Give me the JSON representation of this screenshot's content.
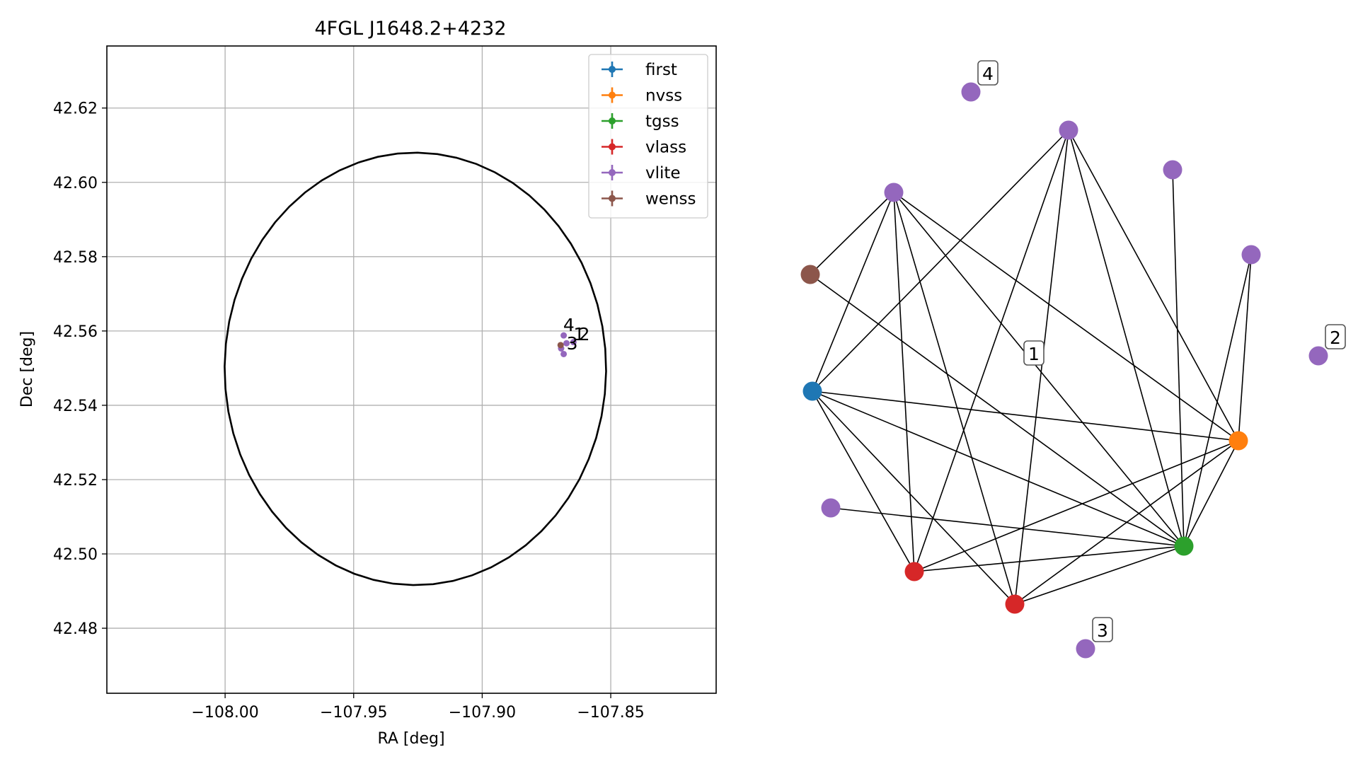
{
  "chart_data": [
    {
      "type": "scatter",
      "title": "4FGL J1648.2+4232",
      "xlabel": "RA [deg]",
      "ylabel": "Dec [deg]",
      "xlim": [
        -108.046,
        -107.809
      ],
      "ylim": [
        42.4625,
        42.6367
      ],
      "xticks": [
        -108.0,
        -107.95,
        -107.9,
        -107.85
      ],
      "xtick_labels": [
        "−108.00",
        "−107.95",
        "−107.90",
        "−107.85"
      ],
      "yticks": [
        42.48,
        42.5,
        42.52,
        42.54,
        42.56,
        42.58,
        42.6,
        42.62
      ],
      "ytick_labels": [
        "42.48",
        "42.50",
        "42.52",
        "42.54",
        "42.56",
        "42.58",
        "42.60",
        "42.62"
      ],
      "grid": true,
      "legend_position": "top-right",
      "ellipse": {
        "center_ra": -107.926,
        "center_dec": 42.5498,
        "semi_ra": 0.0742,
        "semi_dec": 0.0582,
        "color": "#000000"
      },
      "series": [
        {
          "name": "first",
          "color": "#1f77b4",
          "points": []
        },
        {
          "name": "nvss",
          "color": "#ff7f0e",
          "points": []
        },
        {
          "name": "tgss",
          "color": "#2ca02c",
          "points": []
        },
        {
          "name": "vlass",
          "color": "#d62728",
          "points": []
        },
        {
          "name": "vlite",
          "color": "#9467bd",
          "points": [
            {
              "ra": -107.8683,
              "dec": 42.5588
            },
            {
              "ra": -107.8672,
              "dec": 42.5567
            },
            {
              "ra": -107.8645,
              "dec": 42.557
            },
            {
              "ra": -107.8683,
              "dec": 42.5538
            },
            {
              "ra": -107.8693,
              "dec": 42.5553
            }
          ]
        },
        {
          "name": "wenss",
          "color": "#8c564b",
          "points": [
            {
              "ra": -107.8695,
              "dec": 42.5562
            }
          ]
        }
      ],
      "annotations": [
        {
          "text": "4",
          "ra": -107.8685,
          "dec": 42.56
        },
        {
          "text": "1",
          "ra": -107.8645,
          "dec": 42.5575
        },
        {
          "text": "2",
          "ra": -107.8625,
          "dec": 42.5575
        },
        {
          "text": "3",
          "ra": -107.8672,
          "dec": 42.555
        }
      ]
    },
    {
      "type": "network",
      "node_colors": {
        "first": "#1f77b4",
        "nvss": "#ff7f0e",
        "tgss": "#2ca02c",
        "vlass": "#d62728",
        "vlite": "#9467bd",
        "wenss": "#8c564b"
      },
      "nodes": [
        {
          "id": "vlite_4",
          "catalog": "vlite",
          "label": "4"
        },
        {
          "id": "vlite_a",
          "catalog": "vlite",
          "label": ""
        },
        {
          "id": "vlite_b",
          "catalog": "vlite",
          "label": ""
        },
        {
          "id": "vlite_c",
          "catalog": "vlite",
          "label": ""
        },
        {
          "id": "vlite_d",
          "catalog": "vlite",
          "label": ""
        },
        {
          "id": "vlite_2",
          "catalog": "vlite",
          "label": "2"
        },
        {
          "id": "vlite_3",
          "catalog": "vlite",
          "label": "3"
        },
        {
          "id": "vlite_e",
          "catalog": "vlite",
          "label": ""
        },
        {
          "id": "wenss_1",
          "catalog": "wenss",
          "label": ""
        },
        {
          "id": "first_1",
          "catalog": "first",
          "label": ""
        },
        {
          "id": "nvss_1",
          "catalog": "nvss",
          "label": ""
        },
        {
          "id": "tgss_1",
          "catalog": "tgss",
          "label": ""
        },
        {
          "id": "vlass_1",
          "catalog": "vlass",
          "label": ""
        },
        {
          "id": "vlass_2",
          "catalog": "vlass",
          "label": ""
        }
      ],
      "floating_labels": [
        {
          "text": "1"
        }
      ],
      "edges": [
        [
          "vlite_a",
          "wenss_1"
        ],
        [
          "vlite_a",
          "vlass_1"
        ],
        [
          "vlite_a",
          "vlass_2"
        ],
        [
          "vlite_a",
          "tgss_1"
        ],
        [
          "vlite_a",
          "nvss_1"
        ],
        [
          "vlite_b",
          "first_1"
        ],
        [
          "vlite_b",
          "vlass_1"
        ],
        [
          "vlite_b",
          "vlass_2"
        ],
        [
          "vlite_b",
          "tgss_1"
        ],
        [
          "vlite_b",
          "nvss_1"
        ],
        [
          "vlite_c",
          "tgss_1"
        ],
        [
          "vlite_d",
          "tgss_1"
        ],
        [
          "vlite_d",
          "nvss_1"
        ],
        [
          "vlite_e",
          "tgss_1"
        ],
        [
          "wenss_1",
          "tgss_1"
        ],
        [
          "first_1",
          "vlite_a"
        ],
        [
          "first_1",
          "nvss_1"
        ],
        [
          "first_1",
          "tgss_1"
        ],
        [
          "first_1",
          "vlass_1"
        ],
        [
          "first_1",
          "vlass_2"
        ],
        [
          "vlass_1",
          "nvss_1"
        ],
        [
          "vlass_1",
          "tgss_1"
        ],
        [
          "vlass_2",
          "nvss_1"
        ],
        [
          "vlass_2",
          "tgss_1"
        ],
        [
          "nvss_1",
          "tgss_1"
        ]
      ]
    }
  ]
}
